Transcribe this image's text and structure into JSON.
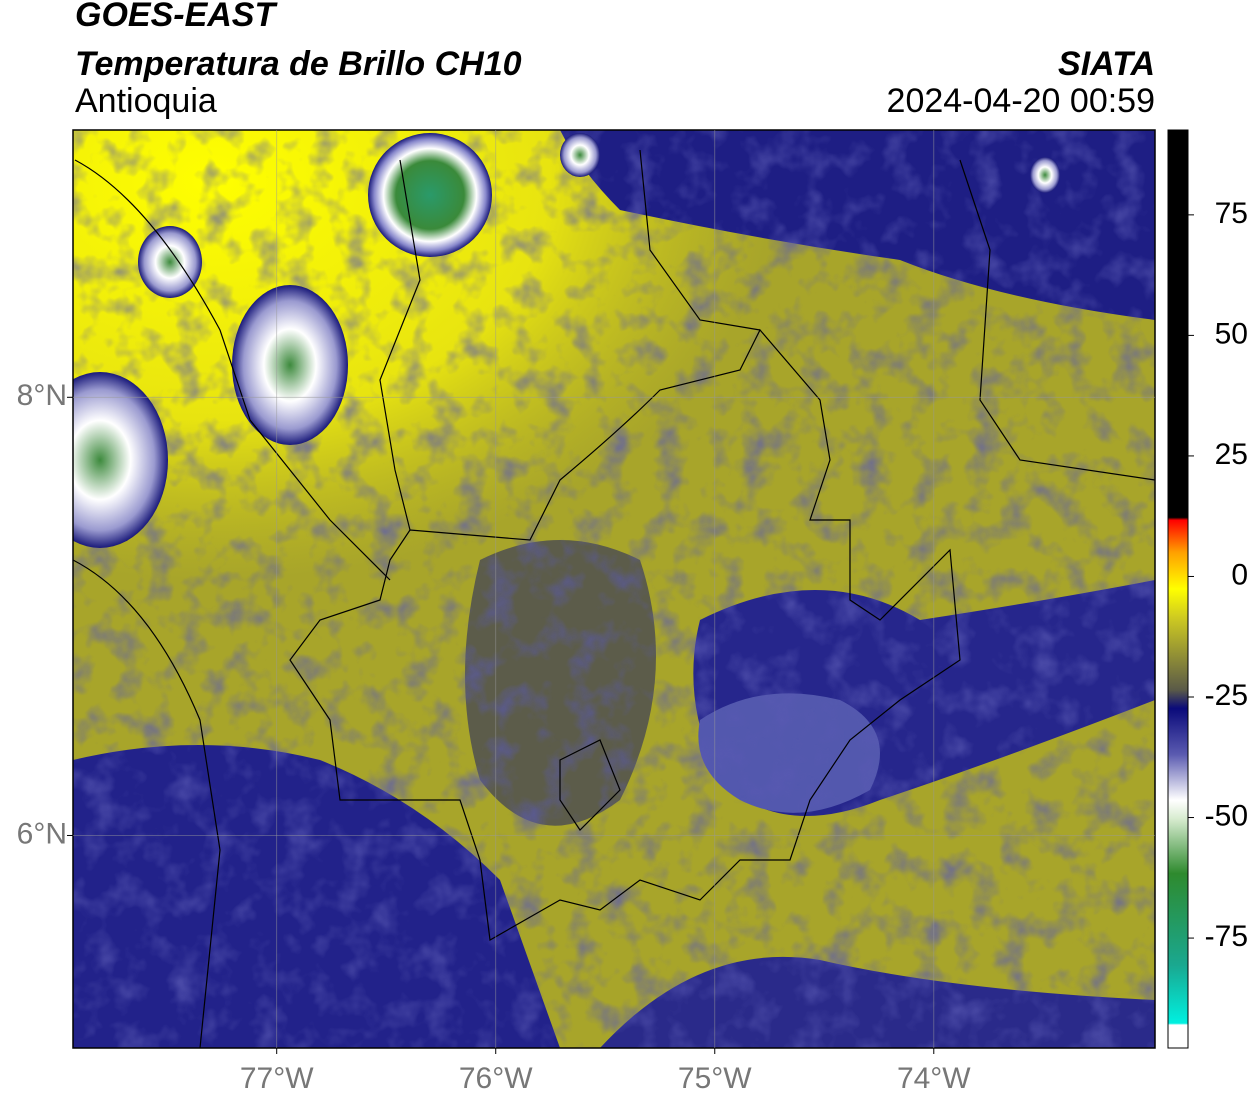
{
  "header": {
    "line1": "GOES-EAST",
    "line2": "Temperatura de Brillo CH10",
    "region": "Antioquia",
    "agency": "SIATA",
    "datetime": "2024-04-20 00:59"
  },
  "map": {
    "xlim": [
      -77.93,
      -72.99
    ],
    "ylim": [
      5.03,
      9.22
    ],
    "xticks": [
      {
        "value": -77,
        "label": "77°W"
      },
      {
        "value": -76,
        "label": "76°W"
      },
      {
        "value": -75,
        "label": "75°W"
      },
      {
        "value": -74,
        "label": "74°W"
      }
    ],
    "yticks": [
      {
        "value": 6,
        "label": "6°N"
      },
      {
        "value": 8,
        "label": "8°N"
      }
    ],
    "grid": true
  },
  "colorbar": {
    "lim": [
      -97.8,
      92.6
    ],
    "ticks": [
      -75,
      -50,
      -25,
      0,
      25,
      50,
      75
    ]
  }
}
